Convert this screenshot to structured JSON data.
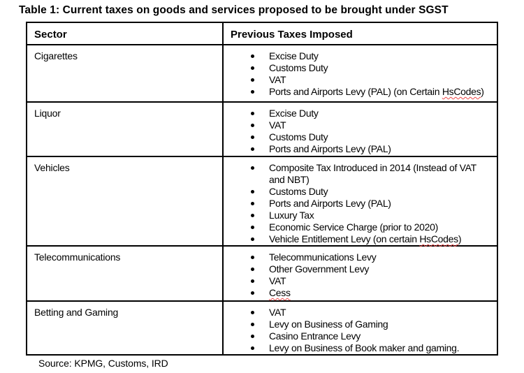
{
  "page": {
    "title": "Table 1: Current taxes on goods and services proposed to be brought under SGST",
    "source_note": "Source: KPMG, Customs, IRD"
  },
  "colors": {
    "text": "#000000",
    "border": "#000000",
    "background": "#ffffff",
    "spellcheck_underline": "#f04848"
  },
  "table": {
    "headers": {
      "sector": "Sector",
      "taxes": "Previous Taxes Imposed"
    },
    "rows": [
      {
        "sector": "Cigarettes",
        "items": [
          {
            "text": "Excise Duty"
          },
          {
            "text": "Customs Duty"
          },
          {
            "text": "VAT"
          },
          {
            "text": "Ports and Airports Levy (PAL) (on Certain ",
            "misspelled": "HsCodes",
            "after": ")"
          }
        ]
      },
      {
        "sector": "Liquor",
        "items": [
          {
            "text": "Excise Duty"
          },
          {
            "text": "VAT"
          },
          {
            "text": "Customs Duty"
          },
          {
            "text": "Ports and Airports Levy (PAL)"
          }
        ]
      },
      {
        "sector": "Vehicles",
        "items": [
          {
            "text": "Composite Tax Introduced in 2014 (Instead of VAT and NBT)"
          },
          {
            "text": "Customs Duty"
          },
          {
            "text": "Ports and Airports Levy (PAL)"
          },
          {
            "text": "Luxury Tax"
          },
          {
            "text": "Economic Service Charge (prior to 2020)"
          },
          {
            "text": "Vehicle Entitlement Levy (on certain ",
            "misspelled": "HsCodes",
            "after": ")"
          }
        ]
      },
      {
        "sector": "Telecommunications",
        "items": [
          {
            "text": "Telecommunications Levy"
          },
          {
            "text": "Other Government Levy"
          },
          {
            "text": "VAT"
          },
          {
            "misspelled": "Cess"
          }
        ]
      },
      {
        "sector": "Betting and Gaming",
        "items": [
          {
            "text": "VAT"
          },
          {
            "text": "Levy on Business of Gaming"
          },
          {
            "text": "Casino Entrance Levy"
          },
          {
            "text": "Levy on Business of Book maker and gaming."
          }
        ]
      }
    ]
  }
}
